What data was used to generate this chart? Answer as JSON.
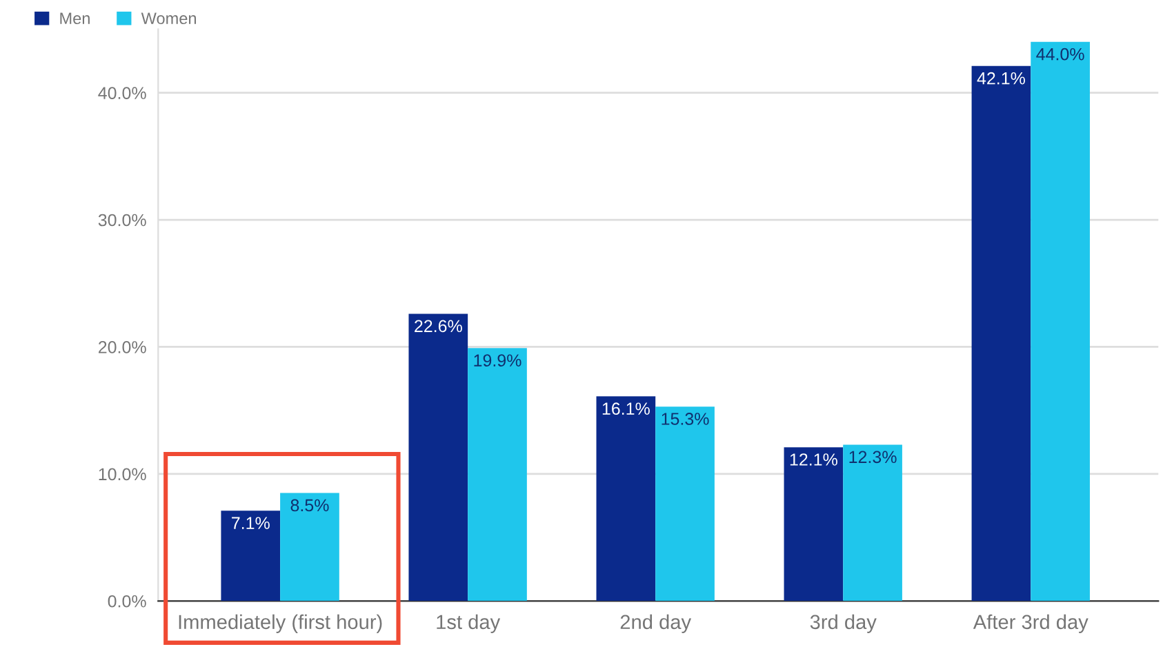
{
  "chart_data": {
    "type": "bar",
    "categories": [
      "Immediately (first hour)",
      "1st day",
      "2nd day",
      "3rd day",
      "After 3rd day"
    ],
    "series": [
      {
        "name": "Men",
        "color": "#0b2a8c",
        "values": [
          7.1,
          22.6,
          16.1,
          12.1,
          42.1
        ],
        "value_labels": [
          "7.1%",
          "22.6%",
          "16.1%",
          "12.1%",
          "42.1%"
        ]
      },
      {
        "name": "Women",
        "color": "#1fc6ec",
        "values": [
          8.5,
          19.9,
          15.3,
          12.3,
          44.0
        ],
        "value_labels": [
          "8.5%",
          "19.9%",
          "15.3%",
          "12.3%",
          "44.0%"
        ]
      }
    ],
    "ylim": [
      0,
      45
    ],
    "yticks": [
      {
        "value": 0,
        "label": "0.0%"
      },
      {
        "value": 10,
        "label": "10.0%"
      },
      {
        "value": 20,
        "label": "20.0%"
      },
      {
        "value": 30,
        "label": "30.0%"
      },
      {
        "value": 40,
        "label": "40.0%"
      }
    ],
    "grid": "y",
    "legend": "top left"
  }
}
